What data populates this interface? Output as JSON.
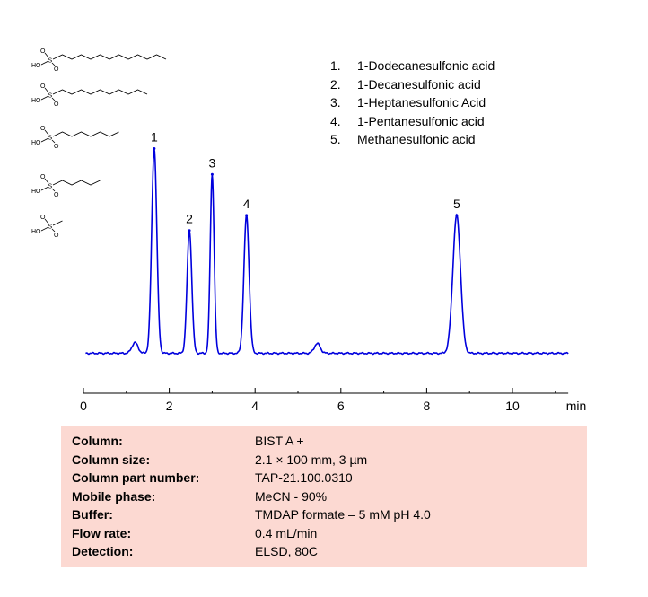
{
  "chart_data": {
    "type": "line",
    "xlabel": "min",
    "xlim": [
      0,
      11.3
    ],
    "ylim": [
      0,
      100
    ],
    "x_ticks": [
      "0",
      "2",
      "4",
      "6",
      "8",
      "10"
    ],
    "peaks": [
      {
        "label": "1",
        "x": 1.65,
        "y": 95
      },
      {
        "label": "2",
        "x": 2.47,
        "y": 57
      },
      {
        "label": "3",
        "x": 3.0,
        "y": 83
      },
      {
        "label": "4",
        "x": 3.8,
        "y": 64
      },
      {
        "label": "5",
        "x": 8.7,
        "y": 64
      }
    ],
    "minor_peaks": [
      {
        "x": 1.2,
        "y": 5
      },
      {
        "x": 5.45,
        "y": 4.5
      }
    ],
    "line_color": "#0000dd"
  },
  "legend": [
    {
      "num": "1.",
      "name": "1-Dodecanesulfonic  acid"
    },
    {
      "num": "2.",
      "name": "1-Decanesulfonic  acid"
    },
    {
      "num": "3.",
      "name": "1-Heptanesulfonic  Acid"
    },
    {
      "num": "4.",
      "name": "1-Pentanesulfonic  acid"
    },
    {
      "num": "5.",
      "name": "Methanesulfonic  acid"
    }
  ],
  "structures": [
    {
      "chain": 12,
      "group": "HO S O O"
    },
    {
      "chain": 10,
      "group": "HO S O O"
    },
    {
      "chain": 7,
      "group": "HO S O O"
    },
    {
      "chain": 5,
      "group": "HO S O O"
    },
    {
      "chain": 1,
      "group": "HO S O O"
    }
  ],
  "conditions": [
    {
      "label": "Column:",
      "value": "BIST A +"
    },
    {
      "label": "Column size:",
      "value": "2.1 × 100 mm, 3 µm"
    },
    {
      "label": "Column part number:",
      "value": "TAP-21.100.0310"
    },
    {
      "label": "Mobile phase:",
      "value": "MeCN  - 90%"
    },
    {
      "label": "Buffer:",
      "value": "TMDAP formate   – 5 mM  pH 4.0"
    },
    {
      "label": "Flow rate:",
      "value": "0.4  mL/min"
    },
    {
      "label": "Detection:",
      "value": "ELSD, 80C"
    }
  ]
}
